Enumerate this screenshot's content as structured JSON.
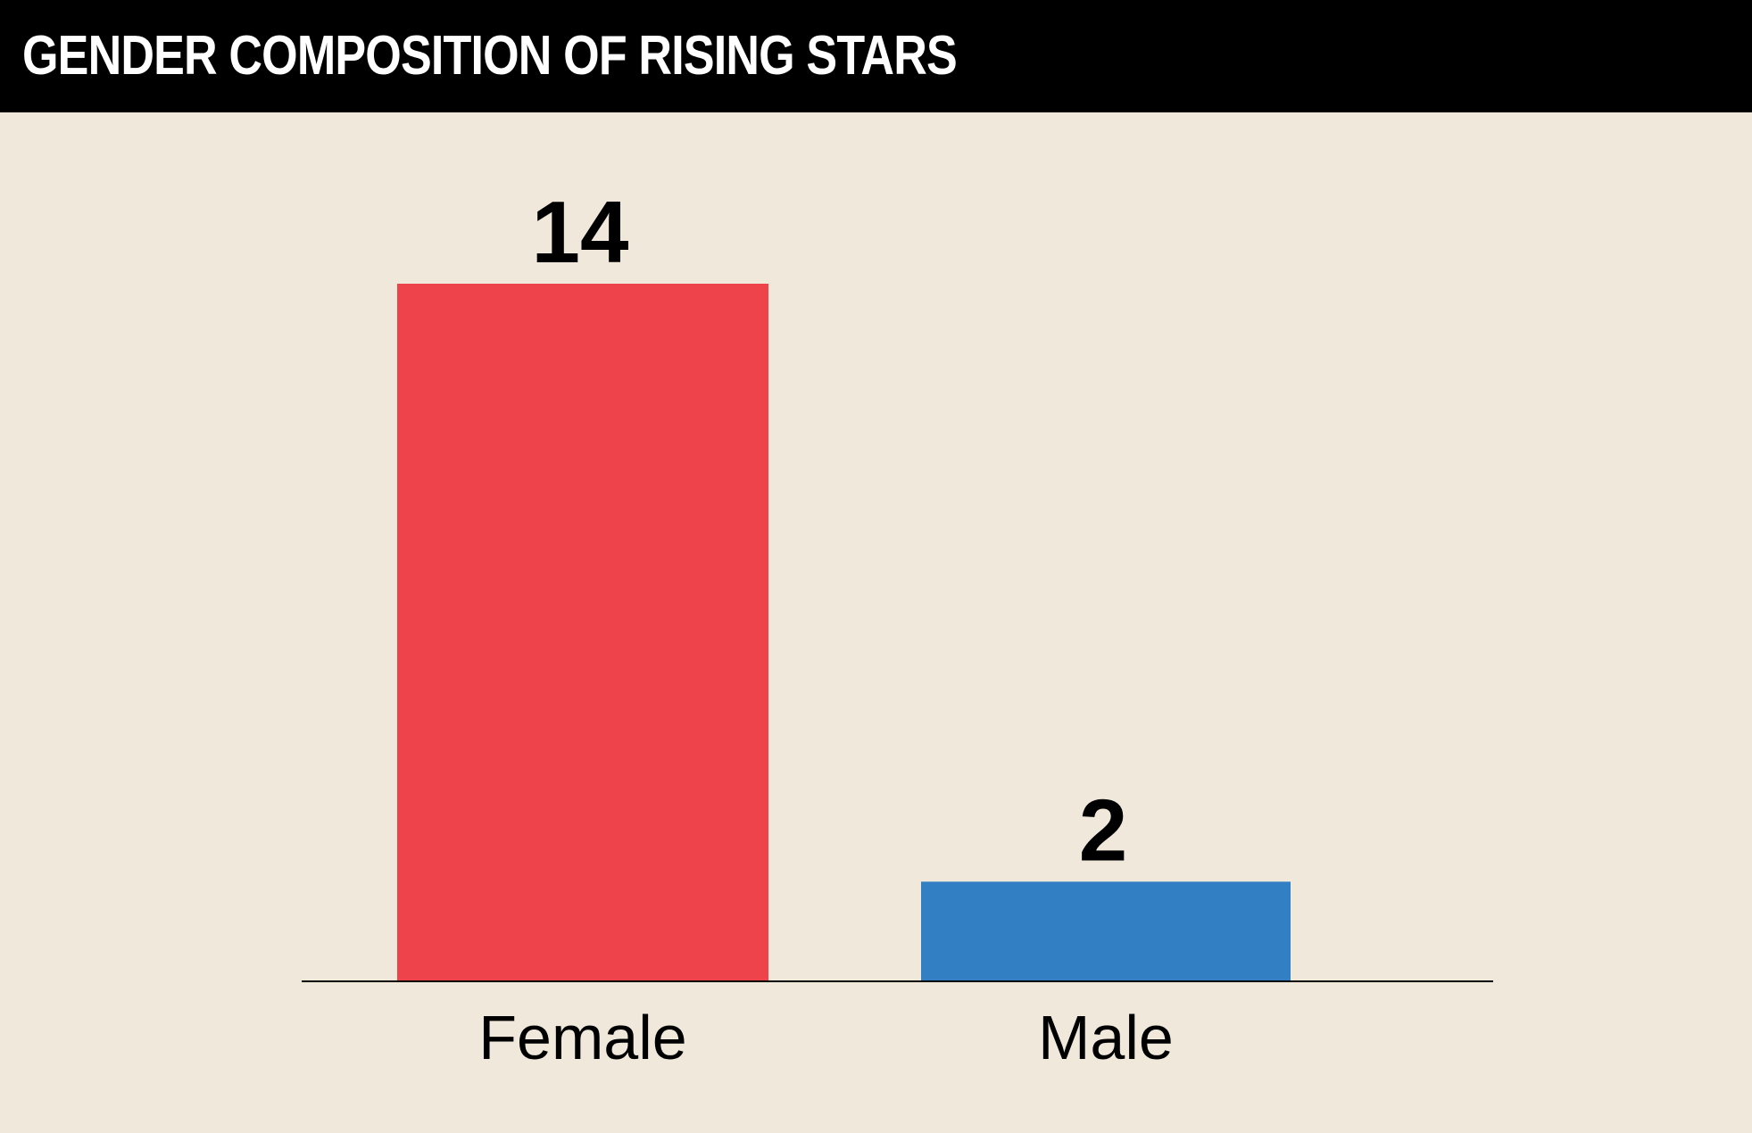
{
  "header": {
    "title": "GENDER COMPOSITION OF RISING STARS"
  },
  "chart_data": {
    "type": "bar",
    "title": "GENDER COMPOSITION OF RISING STARS",
    "xlabel": "",
    "ylabel": "",
    "categories": [
      "Female",
      "Male"
    ],
    "values": [
      14,
      2
    ],
    "data_labels": [
      "14",
      "2"
    ],
    "colors": [
      "#ef434c",
      "#3280c3"
    ],
    "ylim": [
      0,
      14
    ],
    "grid": false,
    "legend": "none"
  },
  "colors": {
    "background": "#f0e8db",
    "header_background": "#000000",
    "header_text": "#ffffff",
    "axis": "#000000"
  }
}
